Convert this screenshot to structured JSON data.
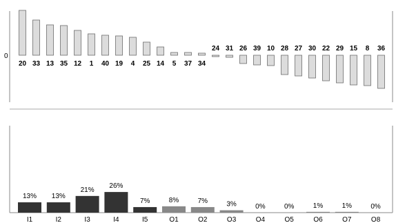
{
  "chart_data": [
    {
      "type": "bar",
      "zero_label": "0",
      "categories": [
        "20",
        "33",
        "13",
        "35",
        "12",
        "1",
        "40",
        "19",
        "4",
        "25",
        "14",
        "5",
        "37",
        "34",
        "24",
        "31",
        "26",
        "39",
        "10",
        "28",
        "27",
        "30",
        "22",
        "29",
        "15",
        "8",
        "36"
      ],
      "values": [
        65,
        51,
        44,
        43,
        36,
        31,
        29,
        28,
        26,
        19,
        12,
        4,
        4,
        3,
        -2,
        -3,
        -12,
        -14,
        -15,
        -28,
        -30,
        -33,
        -37,
        -40,
        -43,
        -44,
        -48
      ],
      "ylim": [
        -60,
        70
      ],
      "xlabel": "",
      "ylabel": "",
      "title": ""
    },
    {
      "type": "bar",
      "categories": [
        "I1",
        "I2",
        "I3",
        "I4",
        "I5",
        "O1",
        "O2",
        "O3",
        "O4",
        "O5",
        "O6",
        "O7",
        "O8"
      ],
      "values": [
        13,
        13,
        21,
        26,
        7,
        8,
        7,
        3,
        0,
        0,
        1,
        1,
        0
      ],
      "value_labels": [
        "13%",
        "13%",
        "21%",
        "26%",
        "7%",
        "8%",
        "7%",
        "3%",
        "0%",
        "0%",
        "1%",
        "1%",
        "0%"
      ],
      "bar_colors": [
        "#333333",
        "#333333",
        "#333333",
        "#333333",
        "#333333",
        "#888888",
        "#888888",
        "#888888",
        "#888888",
        "#888888",
        "#888888",
        "#888888",
        "#888888"
      ],
      "ylim": [
        0,
        100
      ],
      "xlabel": "",
      "ylabel": "",
      "title": ""
    }
  ]
}
